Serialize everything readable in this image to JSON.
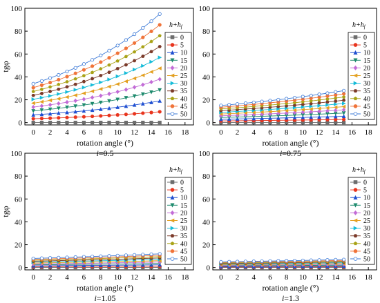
{
  "figure": {
    "legend_title": "h+h",
    "legend_title_sub": "f",
    "xlabel": "rotation angle (°)",
    "ylabel": "tgφ",
    "x_ticks": [
      0,
      2,
      4,
      6,
      8,
      10,
      12,
      14,
      16,
      18
    ],
    "y_ticks": [
      0,
      20,
      40,
      60,
      80,
      100
    ]
  },
  "legend_series": [
    {
      "name": "0",
      "color": "#6d6d6d",
      "marker": "square"
    },
    {
      "name": "5",
      "color": "#e8351e",
      "marker": "circle"
    },
    {
      "name": "10",
      "color": "#1f4fd1",
      "marker": "triangle-up"
    },
    {
      "name": "15",
      "color": "#1d8a6d",
      "marker": "triangle-down"
    },
    {
      "name": "20",
      "color": "#c26bd6",
      "marker": "diamond"
    },
    {
      "name": "25",
      "color": "#e3a021",
      "marker": "triangle-left"
    },
    {
      "name": "30",
      "color": "#17bcd8",
      "marker": "triangle-right"
    },
    {
      "name": "35",
      "color": "#7b3b2a",
      "marker": "hexagon"
    },
    {
      "name": "40",
      "color": "#a9a318",
      "marker": "pentagon"
    },
    {
      "name": "45",
      "color": "#f0743a",
      "marker": "circle"
    },
    {
      "name": "50",
      "color": "#3a78d6",
      "marker": "circle-open"
    }
  ],
  "chart_data": [
    {
      "type": "line",
      "caption_i": "i",
      "caption_value": "=0.5",
      "xlabel": "rotation angle (°)",
      "ylabel": "tgφ",
      "xlim": [
        -1,
        19
      ],
      "ylim": [
        -2,
        100
      ],
      "x": [
        0,
        1,
        2,
        3,
        4,
        5,
        6,
        7,
        8,
        9,
        10,
        11,
        12,
        13,
        14,
        15
      ],
      "series": [
        {
          "name": "0",
          "start": 0.1,
          "end": 0.1
        },
        {
          "name": "5",
          "start": 3.4,
          "end": 9.5
        },
        {
          "name": "10",
          "start": 6.8,
          "end": 19
        },
        {
          "name": "15",
          "start": 10.2,
          "end": 28.5
        },
        {
          "name": "20",
          "start": 13.6,
          "end": 38
        },
        {
          "name": "25",
          "start": 17,
          "end": 47.5
        },
        {
          "name": "30",
          "start": 20.4,
          "end": 57
        },
        {
          "name": "35",
          "start": 23.8,
          "end": 66.5
        },
        {
          "name": "40",
          "start": 27.2,
          "end": 76
        },
        {
          "name": "45",
          "start": 30.6,
          "end": 85.5
        },
        {
          "name": "50",
          "start": 34,
          "end": 95
        }
      ]
    },
    {
      "type": "line",
      "caption_i": "i",
      "caption_value": "=0.75",
      "xlabel": "rotation angle (°)",
      "ylabel": "",
      "xlim": [
        -1,
        19
      ],
      "ylim": [
        -2,
        100
      ],
      "x": [
        0,
        1,
        2,
        3,
        4,
        5,
        6,
        7,
        8,
        9,
        10,
        11,
        12,
        13,
        14,
        15
      ],
      "series": [
        {
          "name": "0",
          "start": 0.1,
          "end": 0.1
        },
        {
          "name": "5",
          "start": 1.5,
          "end": 2.8
        },
        {
          "name": "10",
          "start": 3,
          "end": 5.6
        },
        {
          "name": "15",
          "start": 4.5,
          "end": 8.4
        },
        {
          "name": "20",
          "start": 6,
          "end": 11.2
        },
        {
          "name": "25",
          "start": 7.5,
          "end": 14
        },
        {
          "name": "30",
          "start": 9,
          "end": 16.8
        },
        {
          "name": "35",
          "start": 10.5,
          "end": 19.6
        },
        {
          "name": "40",
          "start": 12,
          "end": 22.4
        },
        {
          "name": "45",
          "start": 13.5,
          "end": 25.2
        },
        {
          "name": "50",
          "start": 15,
          "end": 28
        }
      ]
    },
    {
      "type": "line",
      "caption_i": "i",
      "caption_value": "=1.05",
      "xlabel": "rotation angle (°)",
      "ylabel": "tgφ",
      "xlim": [
        -1,
        19
      ],
      "ylim": [
        -2,
        100
      ],
      "x": [
        0,
        1,
        2,
        3,
        4,
        5,
        6,
        7,
        8,
        9,
        10,
        11,
        12,
        13,
        14,
        15
      ],
      "series": [
        {
          "name": "0",
          "start": 0.1,
          "end": 0.1
        },
        {
          "name": "5",
          "start": 0.8,
          "end": 1.2
        },
        {
          "name": "10",
          "start": 1.6,
          "end": 2.4
        },
        {
          "name": "15",
          "start": 2.4,
          "end": 3.6
        },
        {
          "name": "20",
          "start": 3.2,
          "end": 4.8
        },
        {
          "name": "25",
          "start": 4,
          "end": 6
        },
        {
          "name": "30",
          "start": 4.8,
          "end": 7.2
        },
        {
          "name": "35",
          "start": 5.6,
          "end": 8.4
        },
        {
          "name": "40",
          "start": 6.4,
          "end": 9.6
        },
        {
          "name": "45",
          "start": 7.2,
          "end": 10.8
        },
        {
          "name": "50",
          "start": 8,
          "end": 12
        }
      ]
    },
    {
      "type": "line",
      "caption_i": "i",
      "caption_value": "=1.3",
      "xlabel": "rotation angle (°)",
      "ylabel": "",
      "xlim": [
        -1,
        19
      ],
      "ylim": [
        -2,
        100
      ],
      "x": [
        0,
        1,
        2,
        3,
        4,
        5,
        6,
        7,
        8,
        9,
        10,
        11,
        12,
        13,
        14,
        15
      ],
      "series": [
        {
          "name": "0",
          "start": 0.1,
          "end": 0.1
        },
        {
          "name": "5",
          "start": 0.5,
          "end": 0.7
        },
        {
          "name": "10",
          "start": 1,
          "end": 1.4
        },
        {
          "name": "15",
          "start": 1.5,
          "end": 2.1
        },
        {
          "name": "20",
          "start": 2,
          "end": 2.8
        },
        {
          "name": "25",
          "start": 2.5,
          "end": 3.5
        },
        {
          "name": "30",
          "start": 3,
          "end": 4.2
        },
        {
          "name": "35",
          "start": 3.5,
          "end": 4.9
        },
        {
          "name": "40",
          "start": 4,
          "end": 5.6
        },
        {
          "name": "45",
          "start": 4.5,
          "end": 6.3
        },
        {
          "name": "50",
          "start": 5,
          "end": 7
        }
      ]
    }
  ]
}
